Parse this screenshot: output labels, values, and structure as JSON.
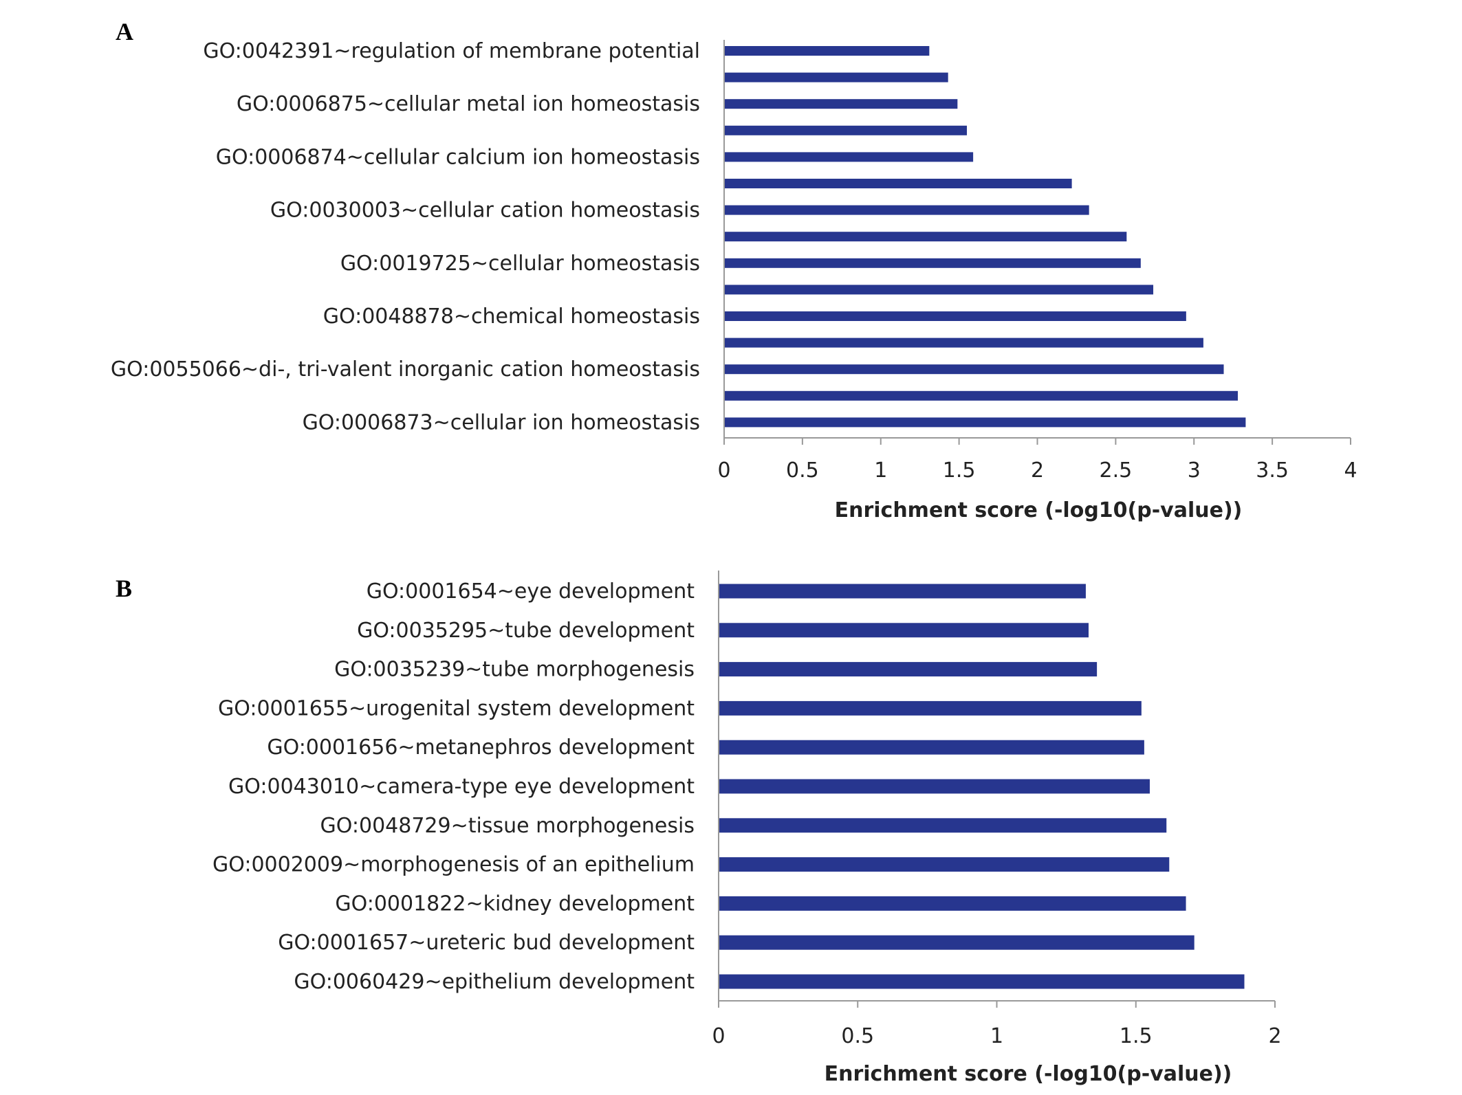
{
  "chart_data": [
    {
      "type": "bar",
      "orientation": "horizontal",
      "panel_label": "A",
      "categories": [
        "GO:0042391~regulation of membrane potential",
        "",
        "GO:0006875~cellular metal ion homeostasis",
        "",
        "GO:0006874~cellular calcium ion homeostasis",
        "",
        "GO:0030003~cellular cation homeostasis",
        "",
        "GO:0019725~cellular homeostasis",
        "",
        "GO:0048878~chemical homeostasis",
        "",
        "GO:0055066~di-, tri-valent inorganic cation homeostasis",
        "",
        "GO:0006873~cellular ion homeostasis"
      ],
      "values": [
        1.31,
        1.43,
        1.49,
        1.55,
        1.59,
        2.22,
        2.33,
        2.57,
        2.66,
        2.74,
        2.95,
        3.06,
        3.19,
        3.28,
        3.33
      ],
      "xlabel": "Enrichment score (-log10(p-value))",
      "xlim": [
        0,
        4
      ],
      "xticks": [
        "0",
        "0.5",
        "1",
        "1.5",
        "2",
        "2.5",
        "3",
        "3.5",
        "4"
      ],
      "bar_color": "#27368f",
      "grid": false
    },
    {
      "type": "bar",
      "orientation": "horizontal",
      "panel_label": "B",
      "categories": [
        "GO:0001654~eye development",
        "GO:0035295~tube development",
        "GO:0035239~tube morphogenesis",
        "GO:0001655~urogenital system development",
        "GO:0001656~metanephros development",
        "GO:0043010~camera-type eye development",
        "GO:0048729~tissue morphogenesis",
        "GO:0002009~morphogenesis of an epithelium",
        "GO:0001822~kidney development",
        "GO:0001657~ureteric bud development",
        "GO:0060429~epithelium development"
      ],
      "values": [
        1.32,
        1.33,
        1.36,
        1.52,
        1.53,
        1.55,
        1.61,
        1.62,
        1.68,
        1.71,
        1.89
      ],
      "xlabel": "Enrichment score (-log10(p-value))",
      "xlim": [
        0,
        2
      ],
      "xticks": [
        "0",
        "0.5",
        "1",
        "1.5",
        "2"
      ],
      "bar_color": "#27368f",
      "grid": false
    }
  ]
}
